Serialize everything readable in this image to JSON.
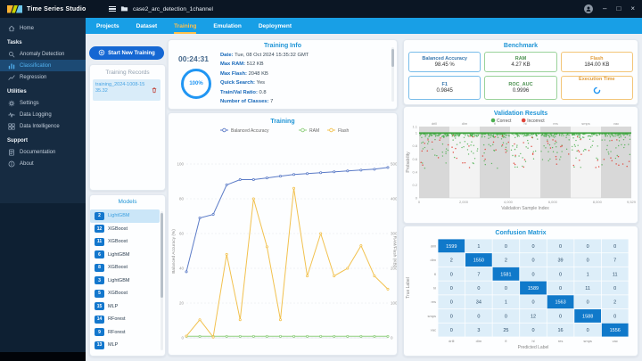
{
  "topbar": {
    "brand": "NXP",
    "app_title": "Time Series Studio",
    "project_name": "case2_arc_detection_1channel",
    "window_controls": [
      "minimize",
      "maximize",
      "close"
    ]
  },
  "tabs": {
    "items": [
      "Projects",
      "Dataset",
      "Training",
      "Emulation",
      "Deployment"
    ],
    "active": "Training"
  },
  "sidebar": {
    "home_label": "Home",
    "sections": [
      {
        "label": "Tasks",
        "items": [
          {
            "label": "Anomaly Detection",
            "icon": "anomaly-detection-icon",
            "active": false
          },
          {
            "label": "Classification",
            "icon": "classification-icon",
            "active": true
          },
          {
            "label": "Regression",
            "icon": "regression-icon",
            "active": false
          }
        ]
      },
      {
        "label": "Utilities",
        "items": [
          {
            "label": "Settings",
            "icon": "settings-icon",
            "active": false
          },
          {
            "label": "Data Logging",
            "icon": "data-logging-icon",
            "active": false
          },
          {
            "label": "Data Intelligence",
            "icon": "data-intelligence-icon",
            "active": false
          }
        ]
      },
      {
        "label": "Support",
        "items": [
          {
            "label": "Documentation",
            "icon": "documentation-icon",
            "active": false
          },
          {
            "label": "About",
            "icon": "about-icon",
            "active": false
          }
        ]
      }
    ]
  },
  "training_panel": {
    "start_button_label": "Start New Training",
    "records_title": "Training Records",
    "records": [
      {
        "name": "training_2024-1008-1535.32",
        "selected": true
      }
    ],
    "models_title": "Models",
    "models": [
      {
        "rank": "2",
        "name": "LightGBM",
        "selected": true
      },
      {
        "rank": "12",
        "name": "XGBoost",
        "selected": false
      },
      {
        "rank": "11",
        "name": "XGBoost",
        "selected": false
      },
      {
        "rank": "6",
        "name": "LightGBM",
        "selected": false
      },
      {
        "rank": "8",
        "name": "XGBoost",
        "selected": false
      },
      {
        "rank": "3",
        "name": "LightGBM",
        "selected": false
      },
      {
        "rank": "5",
        "name": "XGBoost",
        "selected": false
      },
      {
        "rank": "15",
        "name": "MLP",
        "selected": false
      },
      {
        "rank": "14",
        "name": "RForest",
        "selected": false
      },
      {
        "rank": "9",
        "name": "RForest",
        "selected": false
      },
      {
        "rank": "13",
        "name": "MLP",
        "selected": false
      }
    ]
  },
  "training_info": {
    "title": "Training Info",
    "timer": "00:24:31",
    "progress_label": "100%",
    "fields": [
      {
        "label": "Date",
        "value": "Tue, 08 Oct 2024 15:35:32 GMT"
      },
      {
        "label": "Max RAM",
        "value": "512 KB"
      },
      {
        "label": "Max Flash",
        "value": "2048 KB"
      },
      {
        "label": "Quick Search",
        "value": "Yes"
      },
      {
        "label": "Train/Val Ratio",
        "value": "0.8"
      },
      {
        "label": "Number of Classes",
        "value": "7"
      }
    ]
  },
  "benchmark": {
    "title": "Benchmark",
    "cards": [
      {
        "label": "Balanced Accuracy",
        "value": "98.45 %",
        "color": "blue",
        "pending": false
      },
      {
        "label": "RAM",
        "value": "4.27 KB",
        "color": "green",
        "pending": false
      },
      {
        "label": "Flash",
        "value": "184.00 KB",
        "color": "orange",
        "pending": false
      },
      {
        "label": "F1",
        "value": "0.9845",
        "color": "blue",
        "pending": false
      },
      {
        "label": "ROC_AUC",
        "value": "0.9996",
        "color": "green",
        "pending": false
      },
      {
        "label": "Execution Time",
        "value": "",
        "color": "orange",
        "pending": true
      }
    ]
  },
  "colors": {
    "tab_bar": "#189fe6",
    "tab_active": "#ffc14d",
    "accent_blue": "#2095d6",
    "series_accuracy": "#5b7bc7",
    "series_ram": "#8fcf7e",
    "series_flash": "#f2c14e",
    "correct": "#4caf50",
    "incorrect": "#e0453a",
    "matrix_diagonal": "#1079ca",
    "matrix_offdiag": "#ddeef9"
  },
  "chart_data": [
    {
      "id": "training_progress",
      "type": "line",
      "title": "Training",
      "x": [
        1,
        2,
        3,
        4,
        5,
        6,
        7,
        8,
        9,
        10,
        11,
        12,
        13,
        14,
        15,
        16
      ],
      "series": [
        {
          "name": "Balanced Accuracy",
          "axis": "left",
          "color": "#5b7bc7",
          "values": [
            38,
            69,
            71,
            88,
            91,
            91,
            92,
            93,
            94,
            94.5,
            95,
            95.5,
            96,
            96.5,
            97,
            98
          ]
        },
        {
          "name": "RAM",
          "axis": "right",
          "color": "#8fcf7e",
          "values": [
            4.3,
            4.3,
            4.3,
            4.3,
            4.3,
            4.3,
            4.3,
            4.3,
            4.3,
            4.3,
            4.3,
            4.3,
            4.3,
            4.3,
            4.3,
            4.3
          ]
        },
        {
          "name": "Flash",
          "axis": "right",
          "color": "#f2c14e",
          "values": [
            5,
            52,
            2,
            240,
            52,
            400,
            262,
            52,
            430,
            178,
            300,
            178,
            200,
            265,
            178,
            140
          ]
        }
      ],
      "left_axis": {
        "label": "Balanced Accuracy (%)",
        "min": 0,
        "max": 100,
        "ticks": [
          0,
          20,
          40,
          60,
          80,
          100
        ]
      },
      "right_axis": {
        "label": "RAM/Flash (KB)",
        "min": 0,
        "max": 500,
        "ticks": [
          0,
          100,
          200,
          300,
          400,
          500
        ]
      },
      "legend_position": "top",
      "grid": true
    },
    {
      "id": "validation_results",
      "type": "scatter",
      "title": "Validation Results",
      "legend": [
        {
          "name": "Correct",
          "color": "#4caf50"
        },
        {
          "name": "Incorrect",
          "color": "#e0453a"
        }
      ],
      "xlabel": "Validation Sample Index",
      "ylabel": "Probability",
      "x_range": [
        0,
        9529
      ],
      "y_range": [
        0,
        1.1
      ],
      "x_ticks": [
        {
          "pos": 0,
          "label": "0"
        },
        {
          "pos": 2000,
          "label": "2,000"
        },
        {
          "pos": 4000,
          "label": "4,000"
        },
        {
          "pos": 6000,
          "label": "6,000"
        },
        {
          "pos": 8000,
          "label": "8,000"
        },
        {
          "pos": 9529,
          "label": "9,529"
        }
      ],
      "y_ticks": [
        0,
        0.2,
        0.4,
        0.6,
        0.8,
        1,
        1.1
      ],
      "class_bands": [
        "drill",
        "dim",
        "fl",
        "hl",
        "res",
        "smps",
        "vac"
      ],
      "reference_line_y": 1.0,
      "distribution": {
        "points_per_class": 110,
        "dense_fraction": 0.7,
        "sparse_fraction": 0.2,
        "incorrect_fraction": 0.1,
        "dense_y": [
          0.92,
          1.0
        ],
        "sparse_y": [
          0.45,
          0.95
        ],
        "seed": 7
      }
    },
    {
      "id": "confusion_matrix",
      "type": "heatmap",
      "title": "Confusion Matrix",
      "xlabel": "Predicted Label",
      "ylabel": "True Label",
      "labels": [
        "drill",
        "dim",
        "fl",
        "hl",
        "res",
        "smps",
        "vac"
      ],
      "matrix": [
        [
          1599,
          1,
          0,
          0,
          0,
          0,
          0
        ],
        [
          2,
          1550,
          2,
          0,
          39,
          0,
          7
        ],
        [
          0,
          7,
          1581,
          0,
          0,
          1,
          11
        ],
        [
          0,
          0,
          0,
          1589,
          0,
          11,
          0
        ],
        [
          0,
          34,
          1,
          0,
          1563,
          0,
          2
        ],
        [
          0,
          0,
          0,
          12,
          0,
          1588,
          0
        ],
        [
          0,
          3,
          25,
          0,
          16,
          0,
          1556
        ]
      ]
    }
  ]
}
